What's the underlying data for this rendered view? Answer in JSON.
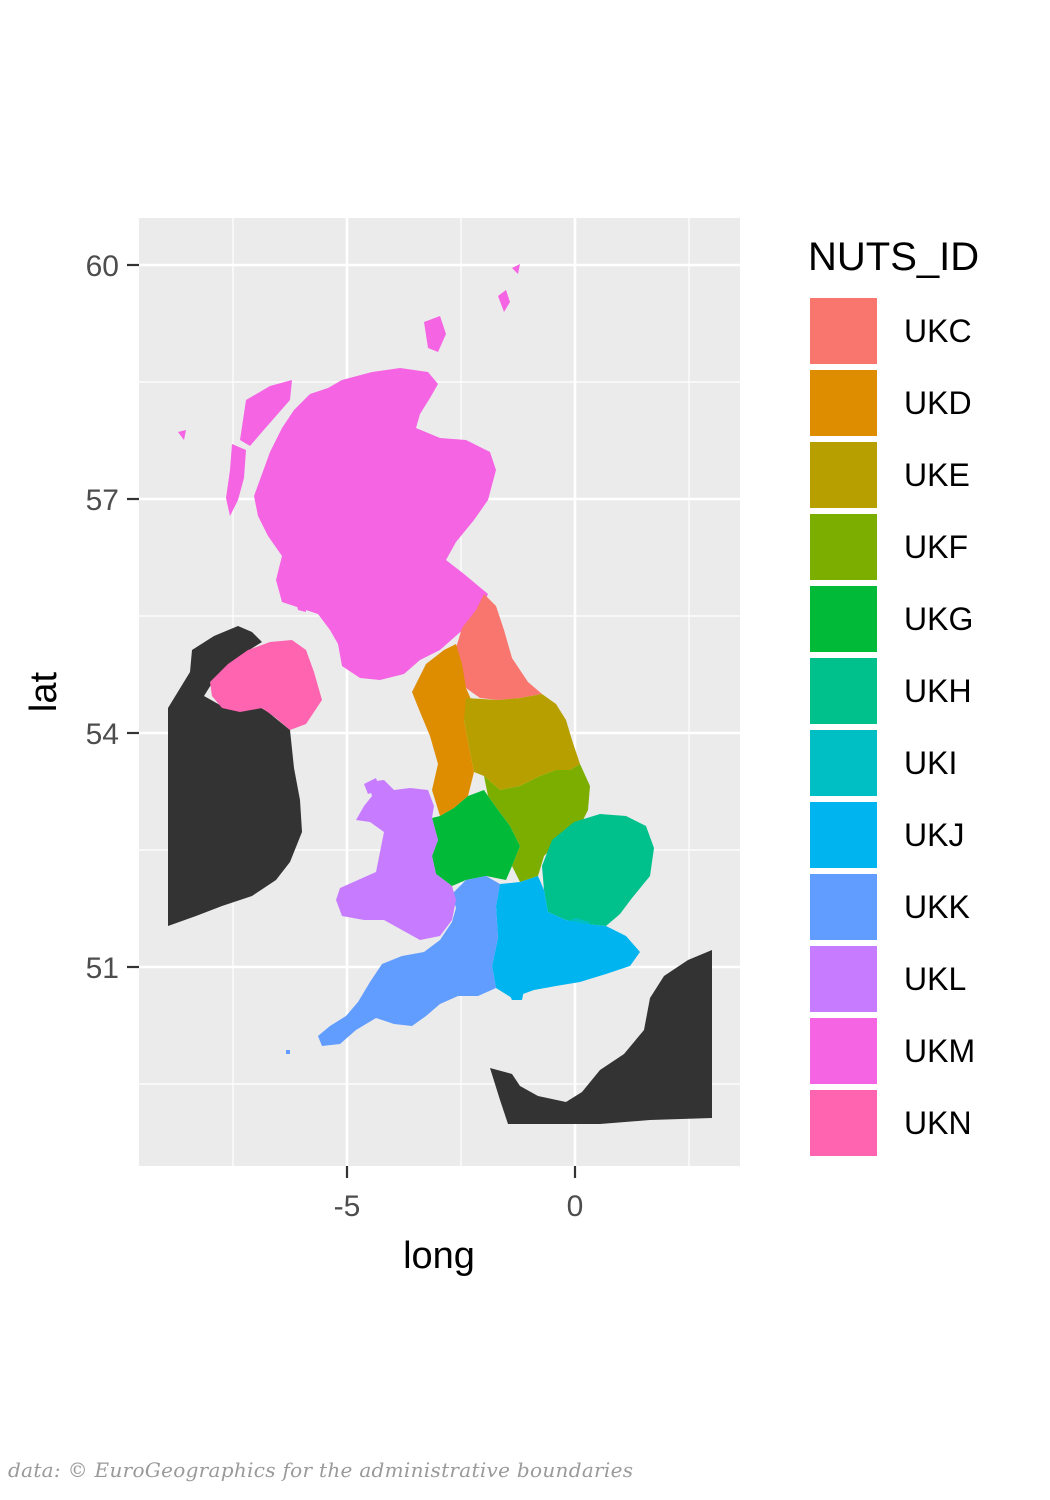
{
  "chart_data": {
    "type": "map",
    "xlabel": "long",
    "ylabel": "lat",
    "x_ticks": [
      -5,
      0
    ],
    "y_ticks": [
      51,
      54,
      57,
      60
    ],
    "legend_title": "NUTS_ID",
    "legend_position": "right",
    "background_land_color": "#333333",
    "regions": [
      {
        "id": "UKC",
        "color": "#F8766D"
      },
      {
        "id": "UKD",
        "color": "#DE8C00"
      },
      {
        "id": "UKE",
        "color": "#B79F00"
      },
      {
        "id": "UKF",
        "color": "#7CAE00"
      },
      {
        "id": "UKG",
        "color": "#00BA38"
      },
      {
        "id": "UKH",
        "color": "#00C08B"
      },
      {
        "id": "UKI",
        "color": "#00BFC4"
      },
      {
        "id": "UKJ",
        "color": "#00B4F0"
      },
      {
        "id": "UKK",
        "color": "#619CFF"
      },
      {
        "id": "UKL",
        "color": "#C77CFF"
      },
      {
        "id": "UKM",
        "color": "#F564E3"
      },
      {
        "id": "UKN",
        "color": "#FF64B0"
      }
    ]
  },
  "caption": "data: © EuroGeographics for the administrative boundaries"
}
